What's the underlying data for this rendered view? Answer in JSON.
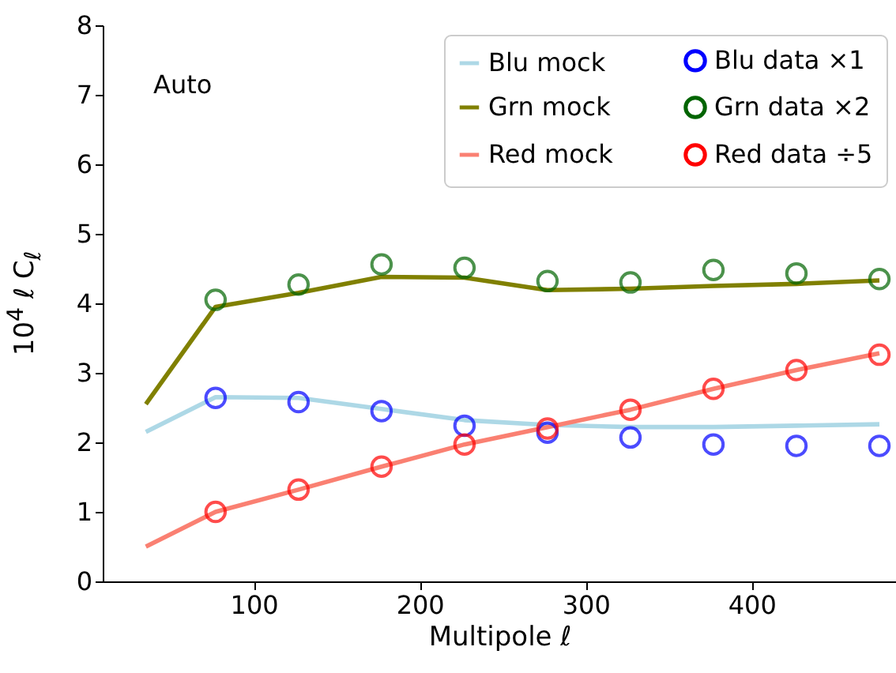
{
  "chart_data": {
    "type": "line",
    "xlabel": "Multipole ℓ",
    "ylabel": "10$^{4}$ ℓ C$_{ℓ}$",
    "annotations": [
      "Auto"
    ],
    "xlim": [
      9,
      487
    ],
    "xticks": [
      100,
      200,
      300,
      400
    ],
    "ylim": [
      0,
      8
    ],
    "yticks": [
      0,
      1,
      2,
      3,
      4,
      5,
      6,
      7,
      8
    ],
    "legend": "top right",
    "series": [
      {
        "name": "Blu mock",
        "color": "#add8e6",
        "x": [
          35,
          77,
          127,
          177,
          227,
          277,
          327,
          377,
          427,
          477
        ],
        "values": [
          2.15,
          2.65,
          2.64,
          2.48,
          2.32,
          2.25,
          2.22,
          2.22,
          2.24,
          2.26
        ]
      },
      {
        "name": "Grn mock",
        "color": "#808000",
        "x": [
          35,
          77,
          127,
          177,
          227,
          277,
          327,
          377,
          427,
          477
        ],
        "values": [
          2.55,
          3.95,
          4.15,
          4.38,
          4.37,
          4.19,
          4.21,
          4.25,
          4.28,
          4.33
        ]
      },
      {
        "name": "Red mock",
        "color": "#fa8072",
        "x": [
          35,
          77,
          127,
          177,
          227,
          277,
          327,
          377,
          427,
          477
        ],
        "values": [
          0.5,
          1.0,
          1.32,
          1.65,
          1.97,
          2.22,
          2.47,
          2.77,
          3.04,
          3.28
        ]
      },
      {
        "name": "Blu data ×1",
        "type": "scatter",
        "marker": "circle",
        "color": "#0000ff",
        "x": [
          77,
          127,
          177,
          227,
          277,
          327,
          377,
          427,
          477
        ],
        "values": [
          2.64,
          2.58,
          2.45,
          2.24,
          2.14,
          2.07,
          1.97,
          1.95,
          1.95
        ]
      },
      {
        "name": "Grn data ×2",
        "type": "scatter",
        "marker": "circle",
        "color": "#006400",
        "x": [
          77,
          127,
          177,
          227,
          277,
          327,
          377,
          427,
          477
        ],
        "values": [
          4.05,
          4.27,
          4.56,
          4.51,
          4.32,
          4.3,
          4.48,
          4.43,
          4.35
        ]
      },
      {
        "name": "Red data ÷5",
        "type": "scatter",
        "marker": "circle",
        "color": "#ff0000",
        "x": [
          77,
          127,
          177,
          227,
          277,
          327,
          377,
          427,
          477
        ],
        "values": [
          1.0,
          1.32,
          1.65,
          1.97,
          2.2,
          2.47,
          2.77,
          3.04,
          3.26
        ]
      }
    ]
  }
}
